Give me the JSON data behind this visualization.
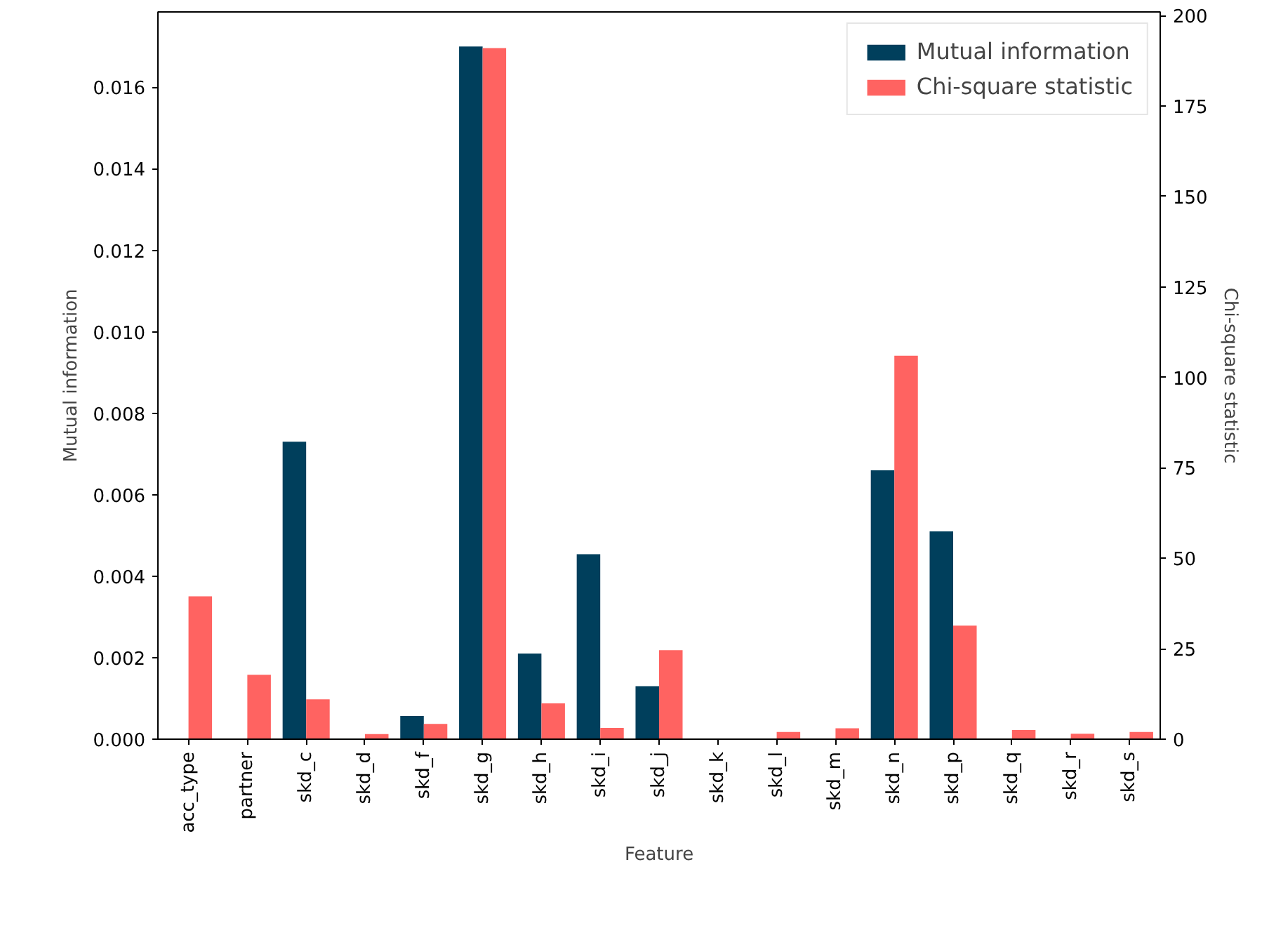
{
  "chart_data": {
    "type": "bar",
    "xlabel": "Feature",
    "ylabel": "Mutual information",
    "y2label": "Chi-square statistic",
    "categories": [
      "acc_type",
      "partner",
      "skd_c",
      "skd_d",
      "skd_f",
      "skd_g",
      "skd_h",
      "skd_i",
      "skd_j",
      "skd_k",
      "skd_l",
      "skd_m",
      "skd_n",
      "skd_p",
      "skd_q",
      "skd_r",
      "skd_s"
    ],
    "series": [
      {
        "name": "Mutual information",
        "color": "#003f5c",
        "values": [
          0,
          0,
          0.0073,
          0,
          0.00057,
          0.017,
          0.0021,
          0.00454,
          0.0013,
          0,
          0,
          0,
          0.0066,
          0.0051,
          0,
          0,
          0
        ]
      },
      {
        "name": "Chi-square statistic",
        "color": "#ff6361",
        "axis": "y2",
        "values": [
          39.5,
          17.8,
          11,
          1.4,
          4.2,
          191,
          9.9,
          3.1,
          24.6,
          0,
          2,
          3,
          106,
          31.4,
          2.5,
          1.5,
          2
        ]
      }
    ],
    "ylim": [
      0,
      0.01785
    ],
    "yticks": [
      {
        "value": 0,
        "label": "0.000"
      },
      {
        "value": 0.002,
        "label": "0.002"
      },
      {
        "value": 0.004,
        "label": "0.004"
      },
      {
        "value": 0.006,
        "label": "0.006"
      },
      {
        "value": 0.008,
        "label": "0.008"
      },
      {
        "value": 0.01,
        "label": "0.010"
      },
      {
        "value": 0.012,
        "label": "0.012"
      },
      {
        "value": 0.014,
        "label": "0.014"
      },
      {
        "value": 0.016,
        "label": "0.016"
      }
    ],
    "y2lim": [
      0,
      201
    ],
    "y2ticks": [
      0,
      25,
      50,
      75,
      100,
      125,
      150,
      175,
      200
    ],
    "grid": false,
    "legend": "top right"
  }
}
